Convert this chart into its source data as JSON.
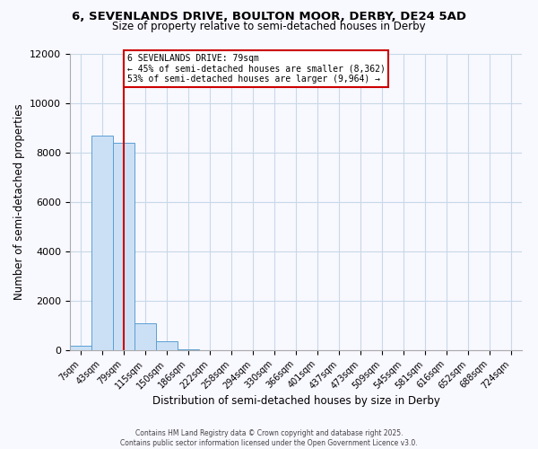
{
  "title_line1": "6, SEVENLANDS DRIVE, BOULTON MOOR, DERBY, DE24 5AD",
  "title_line2": "Size of property relative to semi-detached houses in Derby",
  "xlabel": "Distribution of semi-detached houses by size in Derby",
  "ylabel": "Number of semi-detached properties",
  "bin_labels": [
    "7sqm",
    "43sqm",
    "79sqm",
    "115sqm",
    "150sqm",
    "186sqm",
    "222sqm",
    "258sqm",
    "294sqm",
    "330sqm",
    "366sqm",
    "401sqm",
    "437sqm",
    "473sqm",
    "509sqm",
    "545sqm",
    "581sqm",
    "616sqm",
    "652sqm",
    "688sqm",
    "724sqm"
  ],
  "bin_values": [
    200,
    8700,
    8400,
    1100,
    350,
    50,
    0,
    0,
    0,
    0,
    0,
    0,
    0,
    0,
    0,
    0,
    0,
    0,
    0,
    0,
    0
  ],
  "bar_color": "#cce0f5",
  "bar_edge_color": "#5a9fd4",
  "property_line_x": 2,
  "annotation_title": "6 SEVENLANDS DRIVE: 79sqm",
  "annotation_line2": "← 45% of semi-detached houses are smaller (8,362)",
  "annotation_line3": "53% of semi-detached houses are larger (9,964) →",
  "vline_color": "#cc0000",
  "box_edge_color": "#cc0000",
  "ylim": [
    0,
    12000
  ],
  "yticks": [
    0,
    2000,
    4000,
    6000,
    8000,
    10000,
    12000
  ],
  "footer_line1": "Contains HM Land Registry data © Crown copyright and database right 2025.",
  "footer_line2": "Contains public sector information licensed under the Open Government Licence v3.0.",
  "background_color": "#f8f8ff",
  "grid_color": "#c8d8e8"
}
